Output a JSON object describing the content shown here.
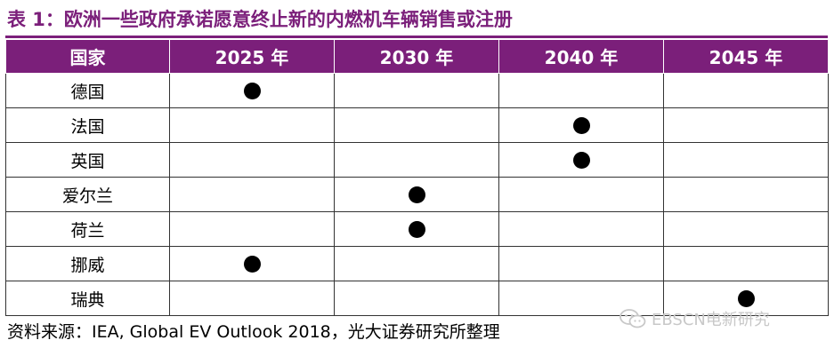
{
  "title": "表 1：欧洲一些政府承诺愿意终止新的内燃机车辆销售或注册",
  "table": {
    "headers": [
      "国家",
      "2025 年",
      "2030 年",
      "2040 年",
      "2045 年"
    ],
    "rows": [
      {
        "country": "德国",
        "marks": [
          true,
          false,
          false,
          false
        ]
      },
      {
        "country": "法国",
        "marks": [
          false,
          false,
          true,
          false
        ]
      },
      {
        "country": "英国",
        "marks": [
          false,
          false,
          true,
          false
        ]
      },
      {
        "country": "爱尔兰",
        "marks": [
          false,
          true,
          false,
          false
        ]
      },
      {
        "country": "荷兰",
        "marks": [
          false,
          true,
          false,
          false
        ]
      },
      {
        "country": "挪威",
        "marks": [
          true,
          false,
          false,
          false
        ]
      },
      {
        "country": "瑞典",
        "marks": [
          false,
          false,
          false,
          true
        ]
      }
    ]
  },
  "source": "资料来源：IEA, Global EV Outlook 2018，光大证券研究所整理",
  "watermark": {
    "icon": "wechat-icon",
    "text": "EBSCN电新研究"
  },
  "colors": {
    "accent": "#7b1f7a",
    "header_text": "#ffffff",
    "mark": "#000000"
  }
}
